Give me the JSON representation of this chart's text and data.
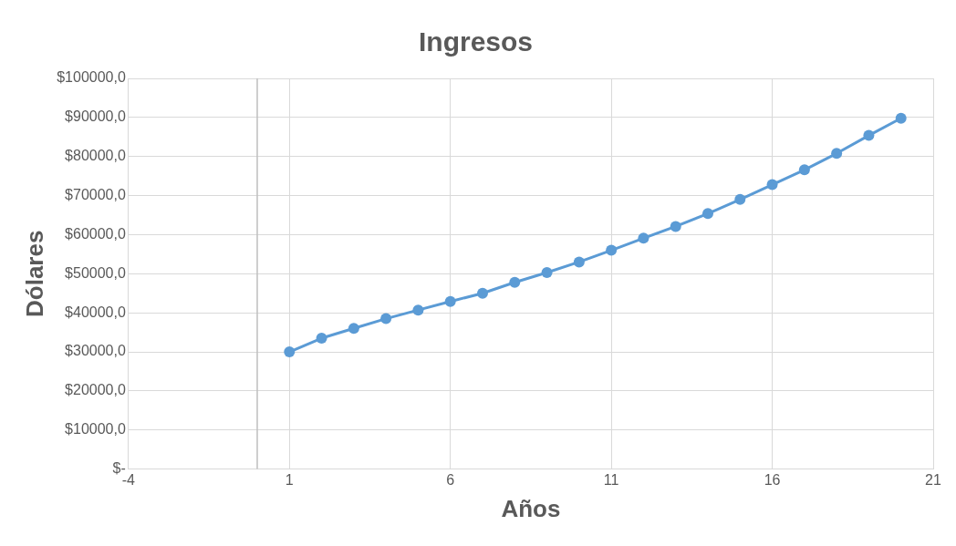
{
  "chart_data": {
    "type": "line",
    "title": "Ingresos",
    "xlabel": "Años",
    "ylabel": "Dólares",
    "x": [
      1,
      2,
      3,
      4,
      5,
      6,
      7,
      8,
      9,
      10,
      11,
      12,
      13,
      14,
      15,
      16,
      17,
      18,
      19,
      20
    ],
    "series": [
      {
        "color": "#5b9bd5",
        "values": [
          30000,
          33500,
          36000,
          38500,
          40700,
          42900,
          45000,
          47800,
          50300,
          53000,
          56000,
          59100,
          62100,
          65400,
          69000,
          72800,
          76600,
          80800,
          85400,
          89800
        ]
      }
    ],
    "xlim": [
      -4,
      21
    ],
    "xticks": [
      -4,
      1,
      6,
      11,
      16,
      21
    ],
    "ylim": [
      0,
      100000
    ],
    "yticks": [
      {
        "value": 0,
        "label": "$-"
      },
      {
        "value": 10000,
        "label": "$10000,0"
      },
      {
        "value": 20000,
        "label": "$20000,0"
      },
      {
        "value": 30000,
        "label": "$30000,0"
      },
      {
        "value": 40000,
        "label": "$40000,0"
      },
      {
        "value": 50000,
        "label": "$50000,0"
      },
      {
        "value": 60000,
        "label": "$60000,0"
      },
      {
        "value": 70000,
        "label": "$70000,0"
      },
      {
        "value": 80000,
        "label": "$80000,0"
      },
      {
        "value": 90000,
        "label": "$90000,0"
      },
      {
        "value": 100000,
        "label": "$100000,0"
      }
    ],
    "grid": true,
    "legend": false,
    "marker": "circle",
    "line_style": "solid"
  }
}
